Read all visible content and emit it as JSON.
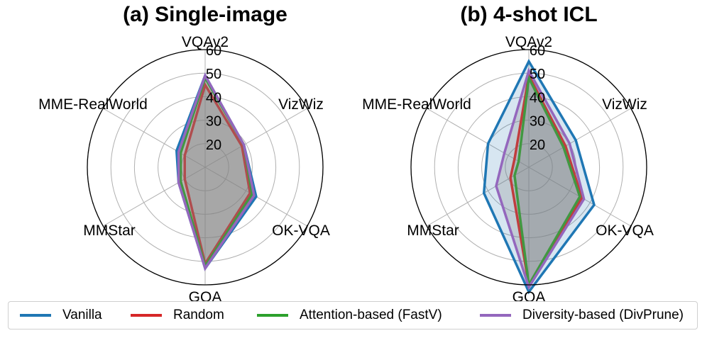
{
  "chart_data": [
    {
      "type": "radar",
      "title": "(a) Single-image",
      "axes": [
        "VQAv2",
        "VizWiz",
        "OK-VQA",
        "GQA",
        "MMStar",
        "MME-RealWorld"
      ],
      "radial_ticks": [
        20,
        30,
        40,
        50,
        60
      ],
      "rlim": [
        10,
        60
      ],
      "grid": true,
      "series": [
        {
          "name": "Vanilla",
          "values": [
            49,
            29,
            35,
            53,
            23,
            24
          ]
        },
        {
          "name": "Random",
          "values": [
            45,
            28,
            32,
            51,
            20,
            20
          ]
        },
        {
          "name": "Attention-based (FastV)",
          "values": [
            48,
            29,
            33,
            52,
            22,
            22
          ]
        },
        {
          "name": "Diversity-based (DivPrune)",
          "values": [
            49,
            29,
            34,
            53,
            23,
            23
          ]
        }
      ]
    },
    {
      "type": "radar",
      "title": "(b) 4-shot ICL",
      "axes": [
        "VQAv2",
        "VizWiz",
        "OK-VQA",
        "GQA",
        "MMStar",
        "MME-RealWorld"
      ],
      "radial_ticks": [
        20,
        30,
        40,
        50,
        60
      ],
      "rlim": [
        10,
        60
      ],
      "grid": true,
      "series": [
        {
          "name": "Vanilla",
          "values": [
            55,
            33,
            42,
            63,
            32,
            30
          ]
        },
        {
          "name": "Random",
          "values": [
            49,
            28,
            36,
            60,
            19,
            17
          ]
        },
        {
          "name": "Attention-based (FastV)",
          "values": [
            48,
            27,
            35,
            60,
            17,
            15
          ]
        },
        {
          "name": "Diversity-based (DivPrune)",
          "values": [
            51,
            30,
            37,
            61,
            26,
            22
          ]
        }
      ]
    }
  ],
  "legend": {
    "placement": "bottom",
    "entries": [
      {
        "label": "Vanilla",
        "color": "#1f77b4"
      },
      {
        "label": "Random",
        "color": "#d62728"
      },
      {
        "label": "Attention-based (FastV)",
        "color": "#2ca02c"
      },
      {
        "label": "Diversity-based (DivPrune)",
        "color": "#9467bd"
      }
    ]
  },
  "style": {
    "fill_color": "#808080",
    "vanilla_fill_b": "#1f77b4"
  }
}
